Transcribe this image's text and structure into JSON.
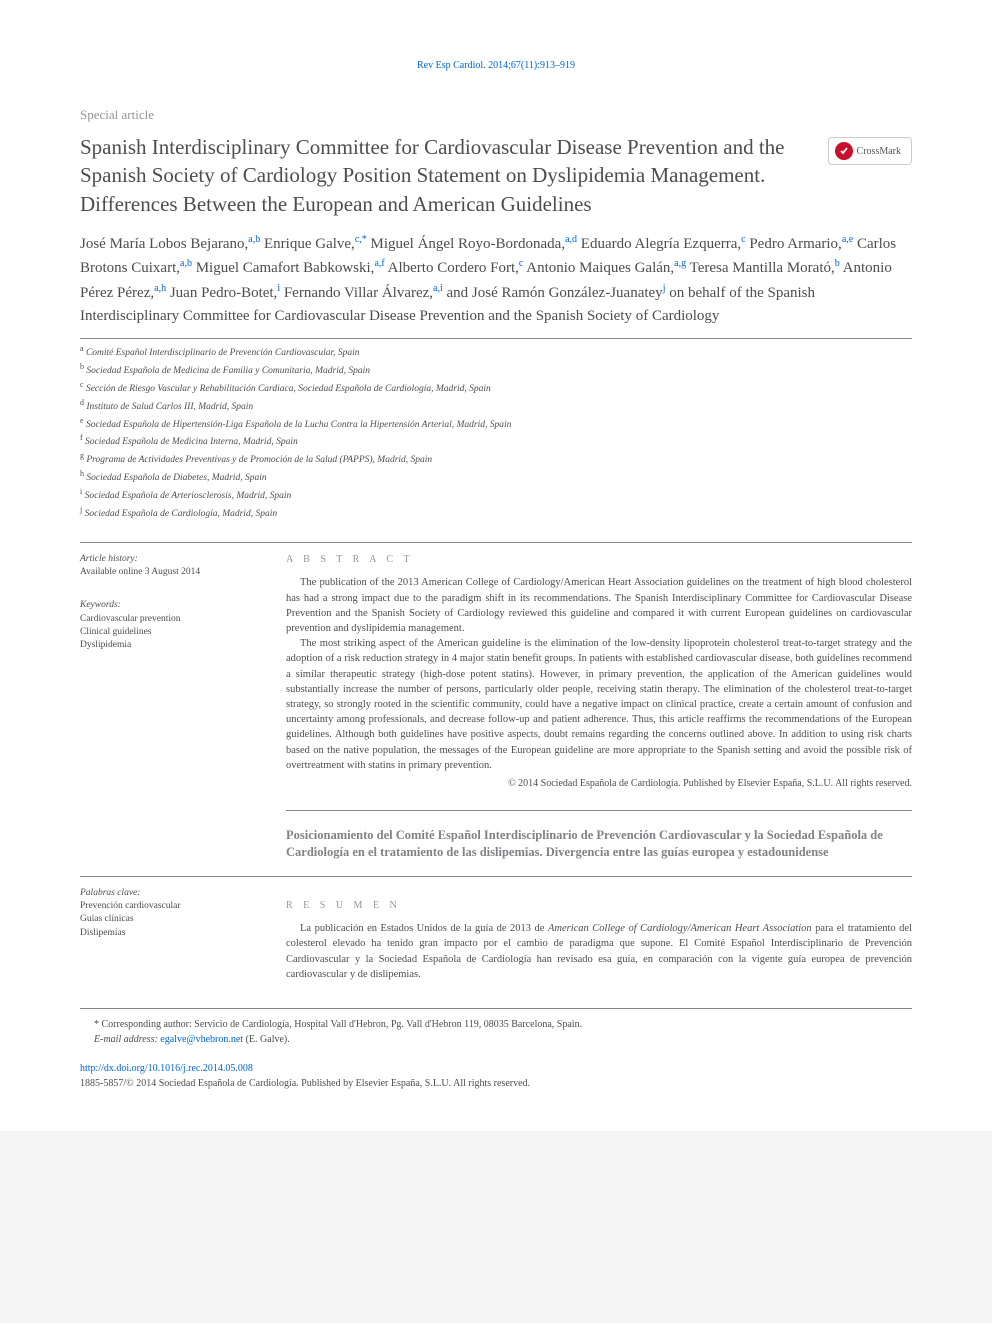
{
  "journal_ref": "Rev Esp Cardiol. 2014;67(11):913–919",
  "article_type": "Special article",
  "title": "Spanish Interdisciplinary Committee for Cardiovascular Disease Prevention and the Spanish Society of Cardiology Position Statement on Dyslipidemia Management. Differences Between the European and American Guidelines",
  "crossmark_label": "CrossMark",
  "authors_html": "José María Lobos Bejarano,<sup>a,b</sup> Enrique Galve,<sup>c,*</sup> Miguel Ángel Royo-Bordonada,<sup>a,d</sup> Eduardo Alegría Ezquerra,<sup>c</sup> Pedro Armario,<sup>a,e</sup> Carlos Brotons Cuixart,<sup>a,b</sup> Miguel Camafort Babkowski,<sup>a,f</sup> Alberto Cordero Fort,<sup>c</sup> Antonio Maiques Galán,<sup>a,g</sup> Teresa Mantilla Morató,<sup>b</sup> Antonio Pérez Pérez,<sup>a,h</sup> Juan Pedro-Botet,<sup>i</sup> Fernando Villar Álvarez,<sup>a,i</sup> and José Ramón González-Juanatey<sup>j</sup> on behalf of the Spanish Interdisciplinary Committee for Cardiovascular Disease Prevention and the Spanish Society of Cardiology",
  "affiliations": [
    {
      "sup": "a",
      "text": "Comité Español Interdisciplinario de Prevención Cardiovascular, Spain"
    },
    {
      "sup": "b",
      "text": "Sociedad Española de Medicina de Familia y Comunitaria, Madrid, Spain"
    },
    {
      "sup": "c",
      "text": "Sección de Riesgo Vascular y Rehabilitación Cardiaca, Sociedad Española de Cardiología, Madrid, Spain"
    },
    {
      "sup": "d",
      "text": "Instituto de Salud Carlos III, Madrid, Spain"
    },
    {
      "sup": "e",
      "text": "Sociedad Española de Hipertensión-Liga Española de la Lucha Contra la Hipertensión Arterial, Madrid, Spain"
    },
    {
      "sup": "f",
      "text": "Sociedad Española de Medicina Interna, Madrid, Spain"
    },
    {
      "sup": "g",
      "text": "Programa de Actividades Preventivas y de Promoción de la Salud (PAPPS), Madrid, Spain"
    },
    {
      "sup": "h",
      "text": "Sociedad Española de Diabetes, Madrid, Spain"
    },
    {
      "sup": "i",
      "text": "Sociedad Española de Arteriosclerosis, Madrid, Spain"
    },
    {
      "sup": "j",
      "text": "Sociedad Española de Cardiología, Madrid, Spain"
    }
  ],
  "history_label": "Article history:",
  "history_line": "Available online 3 August 2014",
  "keywords_label": "Keywords:",
  "keywords": [
    "Cardiovascular prevention",
    "Clinical guidelines",
    "Dyslipidemia"
  ],
  "abstract_label": "A B S T R A C T",
  "abstract_paras": [
    "The publication of the 2013 American College of Cardiology/American Heart Association guidelines on the treatment of high blood cholesterol has had a strong impact due to the paradigm shift in its recommendations. The Spanish Interdisciplinary Committee for Cardiovascular Disease Prevention and the Spanish Society of Cardiology reviewed this guideline and compared it with current European guidelines on cardiovascular prevention and dyslipidemia management.",
    "The most striking aspect of the American guideline is the elimination of the low-density lipoprotein cholesterol treat-to-target strategy and the adoption of a risk reduction strategy in 4 major statin benefit groups. In patients with established cardiovascular disease, both guidelines recommend a similar therapeutic strategy (high-dose potent statins). However, in primary prevention, the application of the American guidelines would substantially increase the number of persons, particularly older people, receiving statin therapy. The elimination of the cholesterol treat-to-target strategy, so strongly rooted in the scientific community, could have a negative impact on clinical practice, create a certain amount of confusion and uncertainty among professionals, and decrease follow-up and patient adherence. Thus, this article reaffirms the recommendations of the European guidelines. Although both guidelines have positive aspects, doubt remains regarding the concerns outlined above. In addition to using risk charts based on the native population, the messages of the European guideline are more appropriate to the Spanish setting and avoid the possible risk of overtreatment with statins in primary prevention."
  ],
  "copyright_en": "© 2014 Sociedad Española de Cardiología. Published by Elsevier España, S.L.U. All rights reserved.",
  "spanish_title": "Posicionamiento del Comité Español Interdisciplinario de Prevención Cardiovascular y la Sociedad Española de Cardiología en el tratamiento de las dislipemias. Divergencia entre las guías europea y estadounidense",
  "resumen_label": "R E S U M E N",
  "palabras_label": "Palabras clave:",
  "palabras": [
    "Prevención cardiovascular",
    "Guías clínicas",
    "Dislipemias"
  ],
  "resumen_text_html": "La publicación en Estados Unidos de la guía de 2013 de <em>American College of Cardiology/American Heart Association</em> para el tratamiento del colesterol elevado ha tenido gran impacto por el cambio de paradigma que supone. El Comité Español Interdisciplinario de Prevención Cardiovascular y la Sociedad Española de Cardiología han revisado esa guía, en comparación con la vigente guía europea de prevención cardiovascular y de dislipemias.",
  "corresponding_star": "*",
  "corresponding_text": "Corresponding author: Servicio de Cardiología, Hospital Vall d'Hebron, Pg. Vall d'Hebron 119, 08035 Barcelona, Spain.",
  "email_label": "E-mail address:",
  "email": "egalve@vhebron.net",
  "email_paren": "(E. Galve).",
  "doi": "http://dx.doi.org/10.1016/j.rec.2014.05.008",
  "issn_line": "1885-5857/© 2014 Sociedad Española de Cardiología. Published by Elsevier España, S.L.U. All rights reserved."
}
